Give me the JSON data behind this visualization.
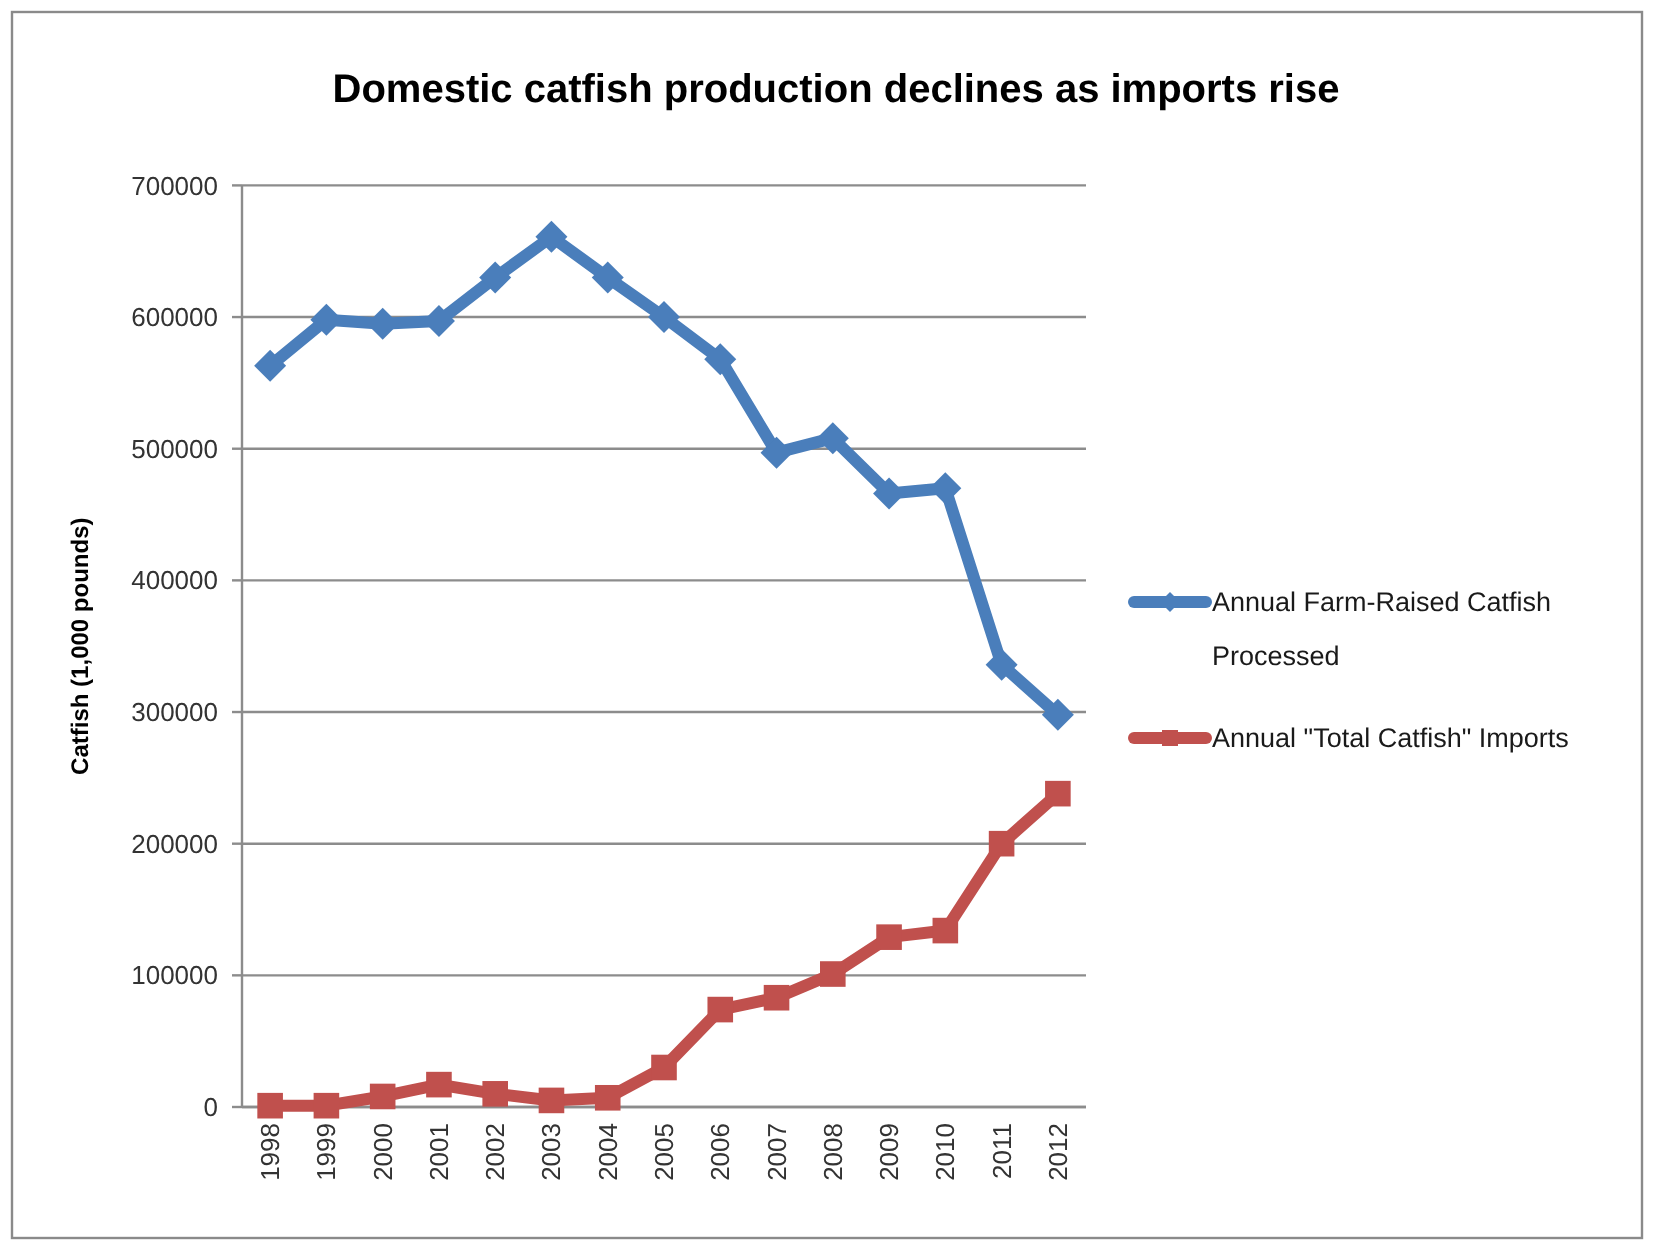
{
  "chart_data": {
    "type": "line",
    "title": "Domestic catfish production declines as imports rise",
    "ylabel": "Catfish (1,000 pounds)",
    "categories": [
      "1998",
      "1999",
      "2000",
      "2001",
      "2002",
      "2003",
      "2004",
      "2005",
      "2006",
      "2007",
      "2008",
      "2009",
      "2010",
      "2011",
      "2012"
    ],
    "series": [
      {
        "name": "Annual Farm-Raised Catfish Processed",
        "color": "#4a7ebb",
        "marker": "diamond",
        "values": [
          563000,
          598000,
          595000,
          597000,
          630000,
          661000,
          630000,
          600000,
          568000,
          497000,
          508000,
          466000,
          470000,
          336000,
          298000
        ]
      },
      {
        "name": "Annual \"Total Catfish\" Imports",
        "color": "#c0504d",
        "marker": "square",
        "values": [
          1000,
          1000,
          8000,
          17000,
          10000,
          5000,
          7000,
          30000,
          74000,
          83000,
          101000,
          129000,
          134000,
          200000,
          238000
        ]
      }
    ],
    "ylim": [
      0,
      700000
    ],
    "yticks": [
      0,
      100000,
      200000,
      300000,
      400000,
      500000,
      600000,
      700000
    ],
    "grid": "y",
    "legend": "right"
  }
}
